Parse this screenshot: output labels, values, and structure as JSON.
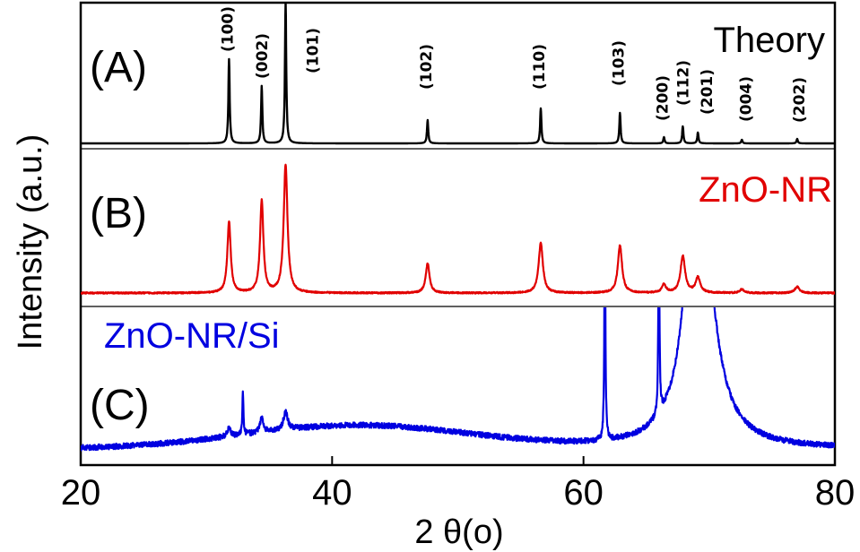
{
  "chart_data": {
    "type": "line",
    "title": "",
    "xlabel": "2 θ(o)",
    "ylabel": "Intensity (a.u.)",
    "xlim": [
      20,
      80
    ],
    "xticks": [
      "20",
      "40",
      "60",
      "80"
    ],
    "yticks": [],
    "grid": false,
    "panel_labels": [
      "(A)",
      "(B)",
      "(C)"
    ],
    "series": [
      {
        "name": "Theory",
        "color": "#000000",
        "baseline": 3,
        "noise": 0,
        "peaks": [
          {
            "x": 31.8,
            "h": 94,
            "w": 0.06,
            "hkl": "(100)"
          },
          {
            "x": 34.4,
            "h": 64,
            "w": 0.06,
            "hkl": "(002)"
          },
          {
            "x": 36.3,
            "h": 158,
            "w": 0.06,
            "hkl": "(101)"
          },
          {
            "x": 47.6,
            "h": 26,
            "w": 0.06,
            "hkl": "(102)"
          },
          {
            "x": 56.6,
            "h": 39,
            "w": 0.06,
            "hkl": "(110)"
          },
          {
            "x": 62.9,
            "h": 34,
            "w": 0.06,
            "hkl": "(103)"
          },
          {
            "x": 66.4,
            "h": 7,
            "w": 0.06,
            "hkl": "(200)"
          },
          {
            "x": 67.9,
            "h": 19,
            "w": 0.06,
            "hkl": "(112)"
          },
          {
            "x": 69.1,
            "h": 12,
            "w": 0.06,
            "hkl": "(201)"
          },
          {
            "x": 72.6,
            "h": 4,
            "w": 0.06,
            "hkl": "(004)"
          },
          {
            "x": 77.0,
            "h": 5,
            "w": 0.06,
            "hkl": "(202)"
          }
        ]
      },
      {
        "name": "ZnO-NR",
        "color": "#e10000",
        "baseline": 3,
        "noise": 0.8,
        "peaks": [
          {
            "x": 31.8,
            "h": 79,
            "w": 0.16
          },
          {
            "x": 34.4,
            "h": 103,
            "w": 0.16
          },
          {
            "x": 36.3,
            "h": 143,
            "w": 0.18
          },
          {
            "x": 47.6,
            "h": 33,
            "w": 0.18
          },
          {
            "x": 56.6,
            "h": 56,
            "w": 0.2
          },
          {
            "x": 62.9,
            "h": 53,
            "w": 0.2
          },
          {
            "x": 66.4,
            "h": 9,
            "w": 0.2
          },
          {
            "x": 67.9,
            "h": 41,
            "w": 0.22
          },
          {
            "x": 69.1,
            "h": 17,
            "w": 0.22
          },
          {
            "x": 72.6,
            "h": 4,
            "w": 0.2
          },
          {
            "x": 77.0,
            "h": 7,
            "w": 0.22
          }
        ]
      },
      {
        "name": "ZnO-NR/Si",
        "color": "#0000e0",
        "baseline": 4,
        "noise": 3,
        "broad_hump": {
          "x": 42,
          "h": 26,
          "w": 9
        },
        "si_substrate": {
          "x": 69.2,
          "h": 320,
          "w": 1.2
        },
        "peaks": [
          {
            "x": 31.8,
            "h": 10,
            "w": 0.15
          },
          {
            "x": 32.9,
            "h": 50,
            "w": 0.05
          },
          {
            "x": 34.4,
            "h": 17,
            "w": 0.15
          },
          {
            "x": 36.3,
            "h": 20,
            "w": 0.2
          },
          {
            "x": 61.7,
            "h": 250,
            "w": 0.05
          },
          {
            "x": 66.0,
            "h": 220,
            "w": 0.05
          },
          {
            "x": 68.2,
            "h": 40,
            "w": 0.3
          }
        ]
      }
    ]
  }
}
